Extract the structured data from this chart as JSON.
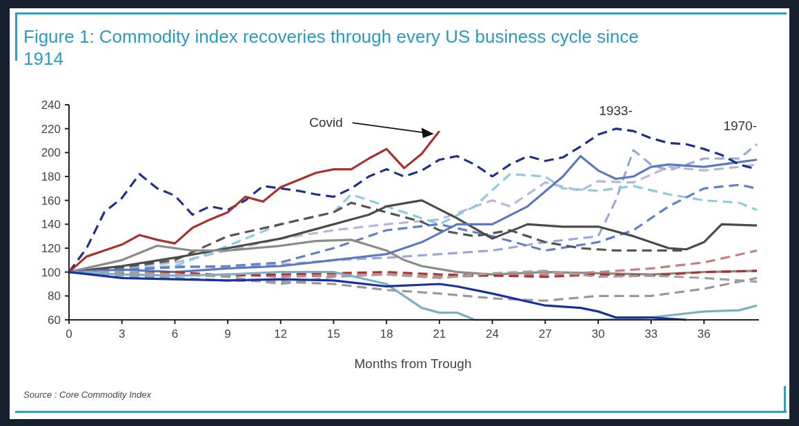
{
  "chart_data": {
    "type": "line",
    "title": "Figure 1: Commodity index recoveries through every US business cycle since 1914",
    "xlabel": "Months from Trough",
    "xlim": [
      0,
      39
    ],
    "ylim": [
      60,
      240
    ],
    "xticks": [
      0,
      3,
      6,
      9,
      12,
      15,
      18,
      21,
      24,
      27,
      30,
      33,
      36
    ],
    "yticks": [
      60,
      80,
      100,
      120,
      140,
      160,
      180,
      200,
      220,
      240
    ],
    "grid": false,
    "annotations": [
      "Covid",
      {
        "text": "1933-",
        "x": 31,
        "y": 220
      },
      {
        "text": "1970-",
        "x": 39,
        "y": 207
      },
      "Source : Core Commodity Index"
    ],
    "series": [
      {
        "color": "#98a8d8",
        "line_style": "dashed",
        "x": [
          0,
          3,
          6,
          9,
          12,
          15,
          18,
          21,
          24,
          27,
          30,
          31,
          32,
          33,
          34,
          36,
          38,
          39
        ],
        "values": [
          100,
          103,
          105,
          104,
          106,
          110,
          112,
          115,
          118,
          125,
          130,
          160,
          202,
          190,
          185,
          195,
          195,
          207
        ]
      },
      {
        "color": "#b6b6d8",
        "line_style": "dashed",
        "x": [
          0,
          3,
          6,
          9,
          12,
          15,
          18,
          21,
          24,
          25,
          27,
          29,
          30,
          32,
          34,
          36,
          38,
          39
        ],
        "values": [
          100,
          104,
          108,
          118,
          128,
          135,
          140,
          144,
          160,
          155,
          175,
          168,
          176,
          175,
          188,
          185,
          188,
          190
        ]
      },
      {
        "color": "#8ccbe0",
        "line_style": "dashed",
        "x": [
          0,
          3,
          6,
          9,
          12,
          15,
          16,
          17,
          19,
          21,
          23,
          25,
          27,
          28,
          30,
          32,
          34,
          36,
          38,
          39
        ],
        "values": [
          100,
          102,
          105,
          122,
          140,
          150,
          165,
          160,
          150,
          140,
          155,
          182,
          180,
          170,
          168,
          172,
          165,
          160,
          158,
          152
        ]
      },
      {
        "color": "#6080c8",
        "line_style": "dashed",
        "x": [
          0,
          3,
          6,
          9,
          12,
          15,
          18,
          21,
          24,
          27,
          30,
          32,
          34,
          36,
          38,
          39
        ],
        "values": [
          100,
          102,
          104,
          105,
          108,
          120,
          135,
          140,
          130,
          118,
          125,
          135,
          155,
          170,
          173,
          170
        ]
      },
      {
        "color": "#555555",
        "line_style": "dashed",
        "x": [
          0,
          3,
          6,
          9,
          12,
          15,
          16,
          18,
          20,
          21,
          23,
          25,
          27,
          29,
          31,
          33,
          35
        ],
        "values": [
          100,
          104,
          110,
          130,
          140,
          150,
          158,
          150,
          142,
          135,
          130,
          135,
          125,
          120,
          118,
          118,
          118
        ]
      },
      {
        "color": "#4a4a4a",
        "line_style": "solid",
        "x": [
          0,
          3,
          6,
          9,
          12,
          15,
          17,
          18,
          20,
          22,
          24,
          26,
          28,
          30,
          32,
          34,
          35,
          36,
          37,
          39
        ],
        "values": [
          100,
          105,
          112,
          120,
          128,
          140,
          148,
          155,
          160,
          145,
          128,
          140,
          138,
          138,
          130,
          120,
          119,
          125,
          140,
          139
        ]
      },
      {
        "color": "#8a8a8a",
        "line_style": "solid",
        "x": [
          0,
          3,
          5,
          7,
          9,
          12,
          14,
          16,
          18,
          19,
          20,
          22,
          24,
          27,
          30,
          33,
          36,
          39
        ],
        "values": [
          100,
          110,
          122,
          118,
          118,
          122,
          126,
          127,
          118,
          110,
          105,
          100,
          98,
          100,
          99,
          98,
          100,
          101
        ]
      },
      {
        "color": "#5b79c0",
        "line_style": "solid",
        "x": [
          0,
          3,
          6,
          9,
          12,
          15,
          18,
          20,
          22,
          24,
          26,
          28,
          29,
          30,
          31,
          32,
          33,
          34,
          36,
          38,
          39
        ],
        "values": [
          100,
          102,
          100,
          103,
          105,
          110,
          115,
          125,
          140,
          140,
          155,
          180,
          197,
          185,
          178,
          180,
          188,
          190,
          188,
          192,
          194
        ]
      },
      {
        "color": "#c08080",
        "line_style": "dashed",
        "x": [
          0,
          3,
          6,
          9,
          12,
          15,
          18,
          21,
          24,
          27,
          30,
          33,
          36,
          39
        ],
        "values": [
          100,
          98,
          97,
          98,
          96,
          97,
          98,
          96,
          97,
          98,
          100,
          103,
          108,
          118
        ]
      },
      {
        "color": "#b03030",
        "line_style": "dashed",
        "x": [
          0,
          3,
          6,
          9,
          12,
          15,
          18,
          21,
          24,
          27,
          30,
          33,
          36,
          39
        ],
        "values": [
          100,
          99,
          100,
          97,
          98,
          99,
          100,
          98,
          97,
          96,
          98,
          97,
          100,
          101
        ]
      },
      {
        "color": "#a0a0a0",
        "line_style": "dashed",
        "x": [
          0,
          3,
          6,
          9,
          12,
          15,
          18,
          21,
          24,
          27,
          30,
          33,
          36,
          39
        ],
        "values": [
          100,
          100,
          98,
          96,
          90,
          96,
          98,
          95,
          99,
          101,
          96,
          97,
          95,
          92
        ]
      },
      {
        "color": "#999999",
        "line_style": "dashed",
        "x": [
          0,
          3,
          6,
          9,
          12,
          15,
          18,
          21,
          24,
          27,
          30,
          33,
          36,
          39
        ],
        "values": [
          100,
          97,
          95,
          93,
          92,
          90,
          85,
          82,
          78,
          76,
          80,
          80,
          86,
          95
        ]
      },
      {
        "color": "#7ab0c0",
        "line_style": "solid",
        "x": [
          0,
          3,
          6,
          9,
          12,
          15,
          18,
          19,
          20,
          21,
          22,
          23,
          30,
          33,
          36,
          38,
          39
        ],
        "values": [
          100,
          98,
          97,
          98,
          100,
          100,
          90,
          80,
          70,
          66,
          66,
          60,
          60,
          62,
          67,
          68,
          72
        ]
      },
      {
        "color": "#1a2fa0",
        "line_style": "solid",
        "x": [
          0,
          3,
          6,
          9,
          12,
          15,
          18,
          21,
          22,
          24,
          27,
          29,
          30,
          31,
          33,
          35
        ],
        "values": [
          100,
          95,
          94,
          93,
          94,
          93,
          88,
          90,
          88,
          82,
          72,
          70,
          67,
          62,
          62,
          60
        ]
      },
      {
        "color": "#1f2f8f",
        "line_style": "dashed",
        "x": [
          0,
          1,
          2,
          3,
          4,
          5,
          6,
          7,
          8,
          9,
          10,
          11,
          12,
          13,
          14,
          15,
          16,
          17,
          18,
          19,
          20,
          21,
          22,
          23,
          24,
          25,
          26,
          27,
          28,
          29,
          30,
          31,
          32,
          33,
          34,
          35,
          36,
          37,
          38,
          39
        ],
        "values": [
          100,
          120,
          150,
          162,
          182,
          170,
          164,
          148,
          155,
          152,
          160,
          172,
          170,
          168,
          165,
          163,
          170,
          180,
          186,
          180,
          185,
          194,
          197,
          190,
          180,
          190,
          197,
          193,
          196,
          205,
          215,
          220,
          218,
          212,
          208,
          207,
          203,
          198,
          190,
          186
        ]
      },
      {
        "color": "#a8312f",
        "line_style": "solid",
        "x": [
          0,
          1,
          2,
          3,
          4,
          5,
          6,
          7,
          8,
          9,
          10,
          11,
          12,
          13,
          14,
          15,
          16,
          17,
          18,
          19,
          20,
          21
        ],
        "values": [
          100,
          113,
          118,
          123,
          131,
          127,
          124,
          137,
          144,
          150,
          163,
          159,
          171,
          177,
          183,
          186,
          186,
          195,
          203,
          187,
          199,
          218
        ]
      }
    ]
  }
}
